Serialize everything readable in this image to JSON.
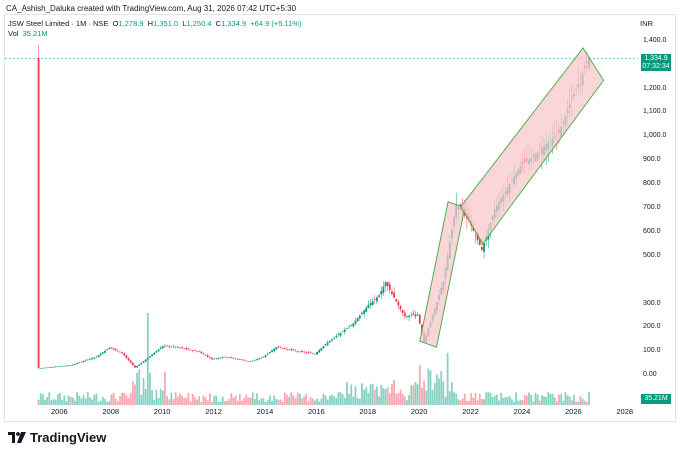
{
  "author_line": "CA_Ashish_Daluka created with TradingView.com, Aug 31, 2026 07:42 UTC+5:30",
  "symbol_line": {
    "title": "JSW Steel Limited · 1M · NSE",
    "o_label": "O",
    "o": "1,278.9",
    "h_label": "H",
    "h": "1,351.0",
    "l_label": "L",
    "l": "1,250.4",
    "c_label": "C",
    "c": "1,334.9",
    "change": "+64.9 (+5.11%)"
  },
  "volume_line": {
    "label": "Vol",
    "value": "35.21M"
  },
  "currency": "INR",
  "price_axis": [
    "1,400.0",
    "1,200.0",
    "1,100.0",
    "1,000.0",
    "900.0",
    "800.0",
    "700.0",
    "600.0",
    "500.0",
    "300.0",
    "200.0",
    "100.0",
    "0.00"
  ],
  "price_tag": {
    "price": "1,334.9",
    "countdown": "07:32:34"
  },
  "volume_tag": "35.21M",
  "time_axis": [
    "2006",
    "2008",
    "2010",
    "2012",
    "2014",
    "2016",
    "2018",
    "2020",
    "2022",
    "2024",
    "2026",
    "2028"
  ],
  "brand": "TradingView",
  "colors": {
    "up": "#089981",
    "down": "#f23645",
    "channel_fill": "#f8c8cb",
    "channel_line": "#4caf50"
  },
  "chart_data": {
    "type": "candlestick",
    "title": "JSW Steel Limited · 1M · NSE",
    "xlabel": "",
    "ylabel": "",
    "x_range": [
      "2005",
      "2028"
    ],
    "y_ticks": [
      1400,
      1200,
      1100,
      1000,
      900,
      800,
      700,
      600,
      500,
      300,
      200,
      100,
      0
    ],
    "price_path": [
      [
        "2005-03",
        32
      ],
      [
        "2006-06",
        45
      ],
      [
        "2007-06",
        80
      ],
      [
        "2007-12",
        118
      ],
      [
        "2008-06",
        95
      ],
      [
        "2008-12",
        35
      ],
      [
        "2009-06",
        75
      ],
      [
        "2010-01",
        125
      ],
      [
        "2010-08",
        120
      ],
      [
        "2011-06",
        100
      ],
      [
        "2011-12",
        70
      ],
      [
        "2012-06",
        80
      ],
      [
        "2013-06",
        60
      ],
      [
        "2013-12",
        80
      ],
      [
        "2014-06",
        120
      ],
      [
        "2015-06",
        100
      ],
      [
        "2015-12",
        92
      ],
      [
        "2016-06",
        140
      ],
      [
        "2017-06",
        220
      ],
      [
        "2018-01",
        300
      ],
      [
        "2018-06",
        340
      ],
      [
        "2018-09",
        395
      ],
      [
        "2019-06",
        250
      ],
      [
        "2019-12",
        260
      ],
      [
        "2020-03",
        140
      ],
      [
        "2020-12",
        400
      ],
      [
        "2021-06",
        720
      ],
      [
        "2021-12",
        650
      ],
      [
        "2022-06",
        530
      ],
      [
        "2022-12",
        700
      ],
      [
        "2023-06",
        790
      ],
      [
        "2023-12",
        880
      ],
      [
        "2024-06",
        920
      ],
      [
        "2025-06",
        1020
      ],
      [
        "2025-12",
        1160
      ],
      [
        "2026-08",
        1334.9
      ]
    ],
    "annotations": [
      "rising channel 2020-2021",
      "rising channel 2021-2026"
    ],
    "last": 1334.9,
    "volume_last": "35.21M"
  }
}
